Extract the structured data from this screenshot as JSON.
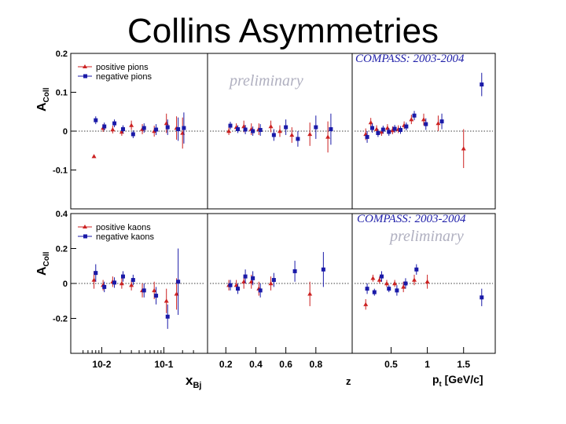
{
  "slide": {
    "title": "Collins Asymmetries"
  },
  "colors": {
    "positive": "#cc2222",
    "negative": "#1a1aa8",
    "axis": "#000000",
    "watermark": "#b0b0c0"
  },
  "chart_data": [
    {
      "type": "scatter",
      "title": "COMPASS: 2003-2004",
      "watermark": "preliminary",
      "ylabel_main": "A",
      "ylabel_sub": "Coll",
      "ylim": [
        -0.2,
        0.2
      ],
      "yticks": [
        0.2,
        0.1,
        0,
        -0.1
      ],
      "ytick_labels": [
        "0.2",
        "0.1",
        "0",
        "-0.1"
      ],
      "legend": [
        {
          "name": "positive pions",
          "symbol": "triangle",
          "color_key": "positive"
        },
        {
          "name": "negative pions",
          "symbol": "square",
          "color_key": "negative"
        }
      ],
      "panels": [
        {
          "variable": "x_Bj",
          "xscale": "log",
          "xlim": [
            0.004,
            0.4
          ],
          "series": [
            {
              "name": "positive pions",
              "points": [
                {
                  "x": 0.0075,
                  "y": -0.065,
                  "e": 0.0
                },
                {
                  "x": 0.0105,
                  "y": 0.008,
                  "e": 0.01
                },
                {
                  "x": 0.015,
                  "y": 0.004,
                  "e": 0.01
                },
                {
                  "x": 0.021,
                  "y": -0.002,
                  "e": 0.01
                },
                {
                  "x": 0.03,
                  "y": 0.015,
                  "e": 0.012
                },
                {
                  "x": 0.045,
                  "y": 0.005,
                  "e": 0.013
                },
                {
                  "x": 0.07,
                  "y": 0.0,
                  "e": 0.014
                },
                {
                  "x": 0.11,
                  "y": 0.02,
                  "e": 0.025
                },
                {
                  "x": 0.16,
                  "y": 0.008,
                  "e": 0.03
                },
                {
                  "x": 0.2,
                  "y": -0.005,
                  "e": 0.04
                }
              ]
            },
            {
              "name": "negative pions",
              "points": [
                {
                  "x": 0.008,
                  "y": 0.028,
                  "e": 0.01
                },
                {
                  "x": 0.011,
                  "y": 0.012,
                  "e": 0.01
                },
                {
                  "x": 0.016,
                  "y": 0.02,
                  "e": 0.01
                },
                {
                  "x": 0.022,
                  "y": 0.005,
                  "e": 0.01
                },
                {
                  "x": 0.032,
                  "y": -0.008,
                  "e": 0.01
                },
                {
                  "x": 0.048,
                  "y": 0.008,
                  "e": 0.012
                },
                {
                  "x": 0.075,
                  "y": 0.004,
                  "e": 0.014
                },
                {
                  "x": 0.115,
                  "y": 0.01,
                  "e": 0.02
                },
                {
                  "x": 0.17,
                  "y": 0.005,
                  "e": 0.03
                },
                {
                  "x": 0.21,
                  "y": 0.008,
                  "e": 0.04
                }
              ]
            }
          ]
        },
        {
          "variable": "z",
          "xscale": "linear",
          "xlim": [
            0.12,
            1.0
          ],
          "series": [
            {
              "name": "positive pions",
              "points": [
                {
                  "x": 0.22,
                  "y": 0.0,
                  "e": 0.01
                },
                {
                  "x": 0.27,
                  "y": 0.01,
                  "e": 0.01
                },
                {
                  "x": 0.32,
                  "y": 0.012,
                  "e": 0.015
                },
                {
                  "x": 0.37,
                  "y": 0.005,
                  "e": 0.015
                },
                {
                  "x": 0.42,
                  "y": 0.005,
                  "e": 0.015
                },
                {
                  "x": 0.5,
                  "y": 0.012,
                  "e": 0.015
                },
                {
                  "x": 0.56,
                  "y": 0.0,
                  "e": 0.015
                },
                {
                  "x": 0.64,
                  "y": -0.01,
                  "e": 0.02
                },
                {
                  "x": 0.76,
                  "y": -0.008,
                  "e": 0.03
                },
                {
                  "x": 0.88,
                  "y": -0.015,
                  "e": 0.04
                }
              ]
            },
            {
              "name": "negative pions",
              "points": [
                {
                  "x": 0.23,
                  "y": 0.014,
                  "e": 0.01
                },
                {
                  "x": 0.28,
                  "y": 0.005,
                  "e": 0.01
                },
                {
                  "x": 0.33,
                  "y": 0.004,
                  "e": 0.012
                },
                {
                  "x": 0.38,
                  "y": 0.0,
                  "e": 0.012
                },
                {
                  "x": 0.43,
                  "y": 0.003,
                  "e": 0.015
                },
                {
                  "x": 0.52,
                  "y": -0.01,
                  "e": 0.015
                },
                {
                  "x": 0.6,
                  "y": 0.01,
                  "e": 0.02
                },
                {
                  "x": 0.68,
                  "y": -0.02,
                  "e": 0.02
                },
                {
                  "x": 0.8,
                  "y": 0.01,
                  "e": 0.03
                },
                {
                  "x": 0.9,
                  "y": 0.005,
                  "e": 0.04
                }
              ]
            }
          ]
        },
        {
          "variable": "p_t",
          "xscale": "linear",
          "xlim": [
            0.05,
            1.85
          ],
          "series": [
            {
              "name": "positive pions",
              "points": [
                {
                  "x": 0.15,
                  "y": -0.008,
                  "e": 0.015
                },
                {
                  "x": 0.22,
                  "y": 0.022,
                  "e": 0.012
                },
                {
                  "x": 0.3,
                  "y": 0.005,
                  "e": 0.01
                },
                {
                  "x": 0.37,
                  "y": -0.002,
                  "e": 0.01
                },
                {
                  "x": 0.45,
                  "y": 0.008,
                  "e": 0.01
                },
                {
                  "x": 0.52,
                  "y": 0.002,
                  "e": 0.01
                },
                {
                  "x": 0.6,
                  "y": 0.005,
                  "e": 0.01
                },
                {
                  "x": 0.68,
                  "y": 0.015,
                  "e": 0.01
                },
                {
                  "x": 0.78,
                  "y": 0.03,
                  "e": 0.012
                },
                {
                  "x": 0.95,
                  "y": 0.03,
                  "e": 0.015
                },
                {
                  "x": 1.15,
                  "y": 0.02,
                  "e": 0.02
                },
                {
                  "x": 1.5,
                  "y": -0.045,
                  "e": 0.05
                }
              ]
            },
            {
              "name": "negative pions",
              "points": [
                {
                  "x": 0.17,
                  "y": -0.015,
                  "e": 0.015
                },
                {
                  "x": 0.24,
                  "y": 0.008,
                  "e": 0.012
                },
                {
                  "x": 0.32,
                  "y": -0.005,
                  "e": 0.01
                },
                {
                  "x": 0.39,
                  "y": 0.004,
                  "e": 0.01
                },
                {
                  "x": 0.47,
                  "y": -0.002,
                  "e": 0.01
                },
                {
                  "x": 0.55,
                  "y": 0.006,
                  "e": 0.01
                },
                {
                  "x": 0.63,
                  "y": 0.003,
                  "e": 0.01
                },
                {
                  "x": 0.71,
                  "y": 0.012,
                  "e": 0.01
                },
                {
                  "x": 0.82,
                  "y": 0.04,
                  "e": 0.012
                },
                {
                  "x": 0.98,
                  "y": 0.018,
                  "e": 0.015
                },
                {
                  "x": 1.2,
                  "y": 0.025,
                  "e": 0.02
                },
                {
                  "x": 1.75,
                  "y": 0.12,
                  "e": 0.03
                }
              ]
            }
          ]
        }
      ]
    },
    {
      "type": "scatter",
      "title": "COMPASS: 2003-2004",
      "watermark": "preliminary",
      "ylabel_main": "A",
      "ylabel_sub": "Coll",
      "ylim": [
        -0.4,
        0.4
      ],
      "yticks": [
        0.4,
        0.2,
        0,
        -0.2
      ],
      "ytick_labels": [
        "0.4",
        "0.2",
        "0",
        "-0.2"
      ],
      "legend": [
        {
          "name": "positive kaons",
          "symbol": "triangle",
          "color_key": "positive"
        },
        {
          "name": "negative kaons",
          "symbol": "square",
          "color_key": "negative"
        }
      ],
      "panels": [
        {
          "variable": "x_Bj",
          "xscale": "log",
          "xlim": [
            0.004,
            0.4
          ],
          "series": [
            {
              "name": "positive kaons",
              "points": [
                {
                  "x": 0.0075,
                  "y": 0.02,
                  "e": 0.05
                },
                {
                  "x": 0.0105,
                  "y": -0.01,
                  "e": 0.03
                },
                {
                  "x": 0.015,
                  "y": 0.01,
                  "e": 0.03
                },
                {
                  "x": 0.021,
                  "y": 0.0,
                  "e": 0.03
                },
                {
                  "x": 0.03,
                  "y": -0.01,
                  "e": 0.03
                },
                {
                  "x": 0.045,
                  "y": -0.04,
                  "e": 0.04
                },
                {
                  "x": 0.07,
                  "y": -0.04,
                  "e": 0.05
                },
                {
                  "x": 0.11,
                  "y": -0.1,
                  "e": 0.07
                },
                {
                  "x": 0.16,
                  "y": -0.06,
                  "e": 0.09
                }
              ]
            },
            {
              "name": "negative kaons",
              "points": [
                {
                  "x": 0.008,
                  "y": 0.06,
                  "e": 0.05
                },
                {
                  "x": 0.011,
                  "y": -0.02,
                  "e": 0.03
                },
                {
                  "x": 0.016,
                  "y": 0.005,
                  "e": 0.03
                },
                {
                  "x": 0.022,
                  "y": 0.04,
                  "e": 0.03
                },
                {
                  "x": 0.032,
                  "y": 0.02,
                  "e": 0.03
                },
                {
                  "x": 0.048,
                  "y": -0.04,
                  "e": 0.04
                },
                {
                  "x": 0.075,
                  "y": -0.07,
                  "e": 0.05
                },
                {
                  "x": 0.115,
                  "y": -0.19,
                  "e": 0.07
                },
                {
                  "x": 0.17,
                  "y": 0.01,
                  "e": 0.19
                }
              ]
            }
          ]
        },
        {
          "variable": "z",
          "xscale": "linear",
          "xlim": [
            0.12,
            1.0
          ],
          "series": [
            {
              "name": "positive kaons",
              "points": [
                {
                  "x": 0.22,
                  "y": -0.01,
                  "e": 0.03
                },
                {
                  "x": 0.27,
                  "y": -0.01,
                  "e": 0.03
                },
                {
                  "x": 0.32,
                  "y": 0.01,
                  "e": 0.04
                },
                {
                  "x": 0.37,
                  "y": 0.01,
                  "e": 0.04
                },
                {
                  "x": 0.42,
                  "y": -0.03,
                  "e": 0.04
                },
                {
                  "x": 0.5,
                  "y": 0.0,
                  "e": 0.04
                },
                {
                  "x": 0.76,
                  "y": -0.06,
                  "e": 0.07
                }
              ]
            },
            {
              "name": "negative kaons",
              "points": [
                {
                  "x": 0.23,
                  "y": -0.01,
                  "e": 0.03
                },
                {
                  "x": 0.28,
                  "y": -0.03,
                  "e": 0.03
                },
                {
                  "x": 0.33,
                  "y": 0.04,
                  "e": 0.04
                },
                {
                  "x": 0.38,
                  "y": 0.03,
                  "e": 0.04
                },
                {
                  "x": 0.43,
                  "y": -0.04,
                  "e": 0.04
                },
                {
                  "x": 0.52,
                  "y": 0.02,
                  "e": 0.04
                },
                {
                  "x": 0.66,
                  "y": 0.07,
                  "e": 0.06
                },
                {
                  "x": 0.85,
                  "y": 0.08,
                  "e": 0.1
                }
              ]
            }
          ]
        },
        {
          "variable": "p_t",
          "xscale": "linear",
          "xlim": [
            0.05,
            1.85
          ],
          "series": [
            {
              "name": "positive kaons",
              "points": [
                {
                  "x": 0.15,
                  "y": -0.12,
                  "e": 0.03
                },
                {
                  "x": 0.25,
                  "y": 0.03,
                  "e": 0.02
                },
                {
                  "x": 0.34,
                  "y": 0.02,
                  "e": 0.02
                },
                {
                  "x": 0.44,
                  "y": 0.0,
                  "e": 0.02
                },
                {
                  "x": 0.55,
                  "y": 0.0,
                  "e": 0.02
                },
                {
                  "x": 0.67,
                  "y": -0.02,
                  "e": 0.03
                },
                {
                  "x": 0.82,
                  "y": 0.02,
                  "e": 0.03
                },
                {
                  "x": 1.0,
                  "y": 0.01,
                  "e": 0.04
                }
              ]
            },
            {
              "name": "negative kaons",
              "points": [
                {
                  "x": 0.17,
                  "y": -0.03,
                  "e": 0.03
                },
                {
                  "x": 0.27,
                  "y": -0.05,
                  "e": 0.02
                },
                {
                  "x": 0.37,
                  "y": 0.04,
                  "e": 0.03
                },
                {
                  "x": 0.47,
                  "y": -0.03,
                  "e": 0.02
                },
                {
                  "x": 0.58,
                  "y": -0.04,
                  "e": 0.03
                },
                {
                  "x": 0.7,
                  "y": 0.0,
                  "e": 0.03
                },
                {
                  "x": 0.85,
                  "y": 0.08,
                  "e": 0.03
                },
                {
                  "x": 1.75,
                  "y": -0.08,
                  "e": 0.05
                }
              ]
            }
          ]
        }
      ]
    }
  ],
  "x_axes": [
    {
      "variable": "x_Bj",
      "label_main": "x",
      "label_sub": "Bj",
      "tick_labels": [
        "10-2",
        "10-1"
      ],
      "tick_values": [
        0.01,
        0.1
      ]
    },
    {
      "variable": "z",
      "label_main": "z",
      "tick_labels": [
        "0.2",
        "0.4",
        "0.6",
        "0.8"
      ],
      "tick_values": [
        0.2,
        0.4,
        0.6,
        0.8
      ]
    },
    {
      "variable": "p_t",
      "label_main": "p",
      "label_sub": "t",
      "label_unit": "[GeV/c]",
      "tick_labels": [
        "0.5",
        "1",
        "1.5"
      ],
      "tick_values": [
        0.5,
        1.0,
        1.5
      ]
    }
  ]
}
